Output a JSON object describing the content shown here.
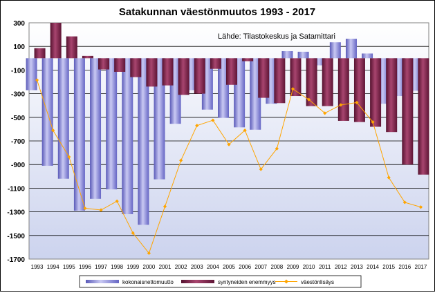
{
  "chart_data": {
    "type": "bar",
    "title": "Satakunnan väestönmuutos 1993 - 2017",
    "source_note": "Lähde: Tilastokeskus ja Satamittari",
    "categories": [
      "1993",
      "1994",
      "1995",
      "1996",
      "1997",
      "1998",
      "1999",
      "2000",
      "2001",
      "2002",
      "2003",
      "2004",
      "2005",
      "2006",
      "2007",
      "2008",
      "2009",
      "2010",
      "2011",
      "2012",
      "2013",
      "2014",
      "2015",
      "2016",
      "2017"
    ],
    "ylim": [
      -1700,
      300
    ],
    "yticks": [
      300,
      100,
      -100,
      -300,
      -500,
      -700,
      -900,
      -1100,
      -1300,
      -1500,
      -1700
    ],
    "grid": true,
    "legend_position": "bottom",
    "series": [
      {
        "name": "kokonaisnettomuutto",
        "kind": "bar",
        "color": "#8585dc",
        "values": [
          -270,
          -910,
          -1020,
          -1290,
          -1190,
          -1110,
          -1320,
          -1410,
          -1025,
          -555,
          -270,
          -435,
          -505,
          -585,
          -605,
          -385,
          60,
          55,
          -60,
          135,
          165,
          40,
          -385,
          -320,
          -275
        ]
      },
      {
        "name": "syntyneiden enemmyys",
        "kind": "bar",
        "color": "#7b1f46",
        "values": [
          85,
          300,
          185,
          20,
          -95,
          -115,
          -160,
          -240,
          -230,
          -310,
          -300,
          -90,
          -225,
          -25,
          -335,
          -380,
          -320,
          -405,
          -405,
          -530,
          -540,
          -580,
          -625,
          -900,
          -985
        ]
      },
      {
        "name": "väestönlisäys",
        "kind": "line",
        "color": "#ffa500",
        "values": [
          -185,
          -610,
          -835,
          -1270,
          -1285,
          -1210,
          -1480,
          -1650,
          -1255,
          -865,
          -570,
          -525,
          -730,
          -610,
          -940,
          -765,
          -260,
          -350,
          -465,
          -395,
          -375,
          -540,
          -1010,
          -1220,
          -1260
        ]
      }
    ]
  }
}
